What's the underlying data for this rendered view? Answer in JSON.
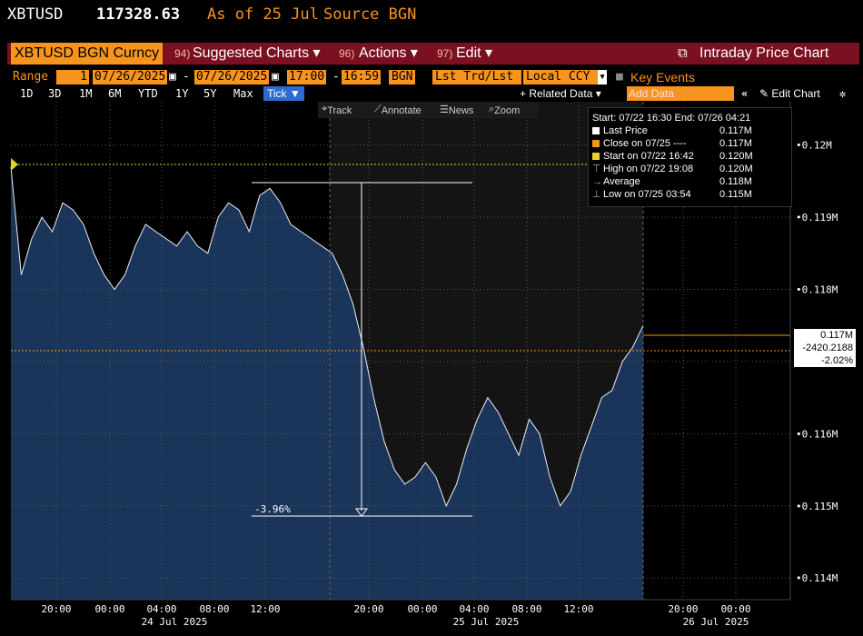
{
  "header": {
    "ticker": "XBTUSD",
    "price": "117328.63",
    "as_of": "As of 25 Jul",
    "source": "Source BGN"
  },
  "toolbar": {
    "security": "XBTUSD BGN Curncy",
    "suggested_num": "94)",
    "suggested_label": "Suggested Charts",
    "actions_num": "96)",
    "actions_label": "Actions",
    "edit_num": "97)",
    "edit_label": "Edit",
    "caret": "▾",
    "title": "Intraday Price Chart"
  },
  "range": {
    "label": "Range",
    "period_value": "1",
    "start_date": "07/26/2025",
    "dash": "-",
    "end_date": "07/26/2025",
    "start_time": "17:00",
    "end_time": "16:59",
    "source": "BGN",
    "field": "Lst Trd/Lst P:",
    "currency": "Local CCY",
    "key_events": "Key Events"
  },
  "periods": {
    "items": [
      "1D",
      "3D",
      "1M",
      "6M",
      "YTD",
      "1Y",
      "5Y",
      "Max"
    ],
    "tick": "Tick ▼",
    "related": "+ Related Data",
    "add_data_placeholder": "Add Data",
    "edit_chart": "Edit Chart"
  },
  "chart_tools": {
    "track": "Track",
    "annotate": "Annotate",
    "news": "News",
    "zoom": "Zoom"
  },
  "legend": {
    "range_text": "Start: 07/22 16:30 End: 07/26 04:21",
    "rows": [
      {
        "label": "Last Price",
        "value": "0.117M",
        "color": "#ffffff"
      },
      {
        "label": "Close on 07/25 ----",
        "value": "0.117M",
        "color": "#f7941d"
      },
      {
        "label": "Start on 07/22 16:42",
        "value": "0.120M",
        "color": "#e8d22a"
      },
      {
        "label": "High on 07/22 19:08",
        "value": "0.120M",
        "color": ""
      },
      {
        "label": "Average",
        "value": "0.118M",
        "color": ""
      },
      {
        "label": "Low on 07/25 03:54",
        "value": "0.115M",
        "color": ""
      }
    ]
  },
  "last_tags": {
    "price": "0.117M",
    "change": "-2420.2188",
    "pct": "-2.02%"
  },
  "annotation": {
    "drawdown_label": "-3.96%"
  },
  "chart_data": {
    "type": "area",
    "series": [
      {
        "name": "Last Price",
        "values": [
          0.1197,
          0.1182,
          0.1187,
          0.119,
          0.1188,
          0.1192,
          0.1191,
          0.1189,
          0.1185,
          0.1182,
          0.118,
          0.1182,
          0.1186,
          0.1189,
          0.1188,
          0.1187,
          0.1186,
          0.1188,
          0.1186,
          0.1185,
          0.119,
          0.1192,
          0.1191,
          0.1188,
          0.1193,
          0.1194,
          0.1192,
          0.1189,
          0.1188,
          0.1187,
          0.1186,
          0.1185,
          0.1182,
          0.1178,
          0.1172,
          0.1165,
          0.1159,
          0.1155,
          0.1153,
          0.1154,
          0.1156,
          0.1154,
          0.115,
          0.1153,
          0.1158,
          0.1162,
          0.1165,
          0.1163,
          0.116,
          0.1157,
          0.1162,
          0.116,
          0.1154,
          0.115,
          0.1152,
          0.1157,
          0.1161,
          0.1165,
          0.1166,
          0.117,
          0.1172,
          0.1175
        ]
      }
    ],
    "ylim": [
      0.1137,
      0.1206
    ],
    "y_ticks": [
      "0.12M",
      "0.119M",
      "0.118M",
      "0.117M",
      "0.116M",
      "0.115M",
      "0.114M"
    ],
    "x_ticks": [
      "20:00",
      "00:00",
      "04:00",
      "08:00",
      "12:00",
      "20:00",
      "00:00",
      "04:00",
      "08:00",
      "12:00",
      "20:00",
      "00:00"
    ],
    "date_labels": [
      "24 Jul 2025",
      "25 Jul 2025",
      "26 Jul 2025"
    ],
    "grid": true
  },
  "colors": {
    "accent": "#f7941d",
    "toolbar_bg": "#7a1020",
    "area_fill": "#1b3459",
    "tick_blue": "#2d6bd1"
  }
}
